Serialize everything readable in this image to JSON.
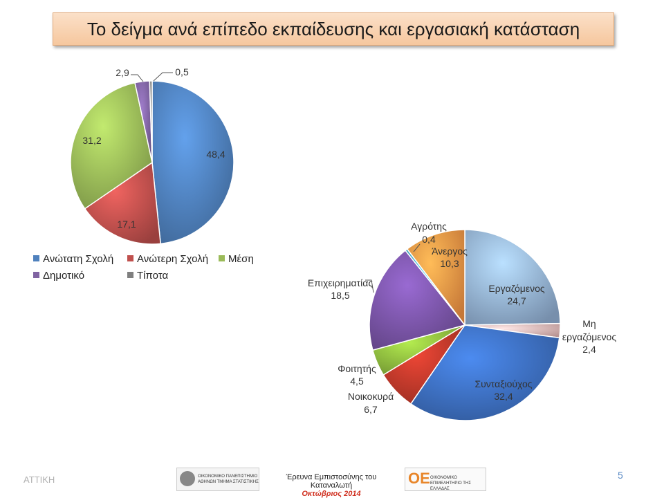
{
  "title": "Το δείγμα ανά επίπεδο εκπαίδευσης και εργασιακή κατάσταση",
  "chart_data": [
    {
      "type": "pie",
      "categories": [
        "Ανώτατη Σχολή",
        "Ανώτερη Σχολή",
        "Μέση",
        "Δημοτικό",
        "Τίποτα"
      ],
      "values": [
        48.4,
        17.1,
        31.2,
        2.9,
        0.5
      ],
      "value_labels": [
        "48,4",
        "17,1",
        "31,2",
        "2,9",
        "0,5"
      ],
      "colors": [
        "#4f81bd",
        "#c0504d",
        "#9bbb59",
        "#8064a2",
        "#7f7f7f"
      ],
      "legend": [
        "Ανώτατη Σχολή",
        "Ανώτερη Σχολή",
        "Μέση",
        "Δημοτικό",
        "Τίποτα"
      ],
      "legend_position": "bottom-left"
    },
    {
      "type": "pie",
      "categories": [
        "Εργαζόμενος",
        "Μη εργαζόμενος",
        "Συνταξιούχος",
        "Νοικοκυρά",
        "Φοιτητής",
        "Επιχειρηματίας",
        "Αγρότης",
        "Άνεργος"
      ],
      "values": [
        24.7,
        2.4,
        32.4,
        6.7,
        4.5,
        18.5,
        0.4,
        10.3
      ],
      "value_labels": [
        "24,7",
        "2,4",
        "32,4",
        "6,7",
        "4,5",
        "18,5",
        "0,4",
        "10,3"
      ],
      "colors": [
        "#95b3d7",
        "#e6b9b8",
        "#3d6fc0",
        "#c0392b",
        "#8fbc3f",
        "#7a55a8",
        "#4bacc6",
        "#f79646"
      ]
    }
  ],
  "footer": {
    "region": "ΑΤΤΙΚΗ",
    "logo1_text": "ΟΙΚΟΝΟΜΙΚΟ ΠΑΝΕΠΙΣΤΗΜΙΟ ΑΘΗΝΩΝ ΤΜΗΜΑ ΣΤΑΤΙΣΤΙΚΗΣ",
    "survey_title": "Έρευνα Εμπιστοσύνης του Καταναλωτή",
    "survey_date": "Οκτώβριος 2014",
    "logo2_text": "ΟΙΚΟΝΟΜΙΚΟ ΕΠΙΜΕΛΗΤΗΡΙΟ ΤΗΣ ΕΛΛΑΔΑΣ",
    "page_number": "5"
  }
}
